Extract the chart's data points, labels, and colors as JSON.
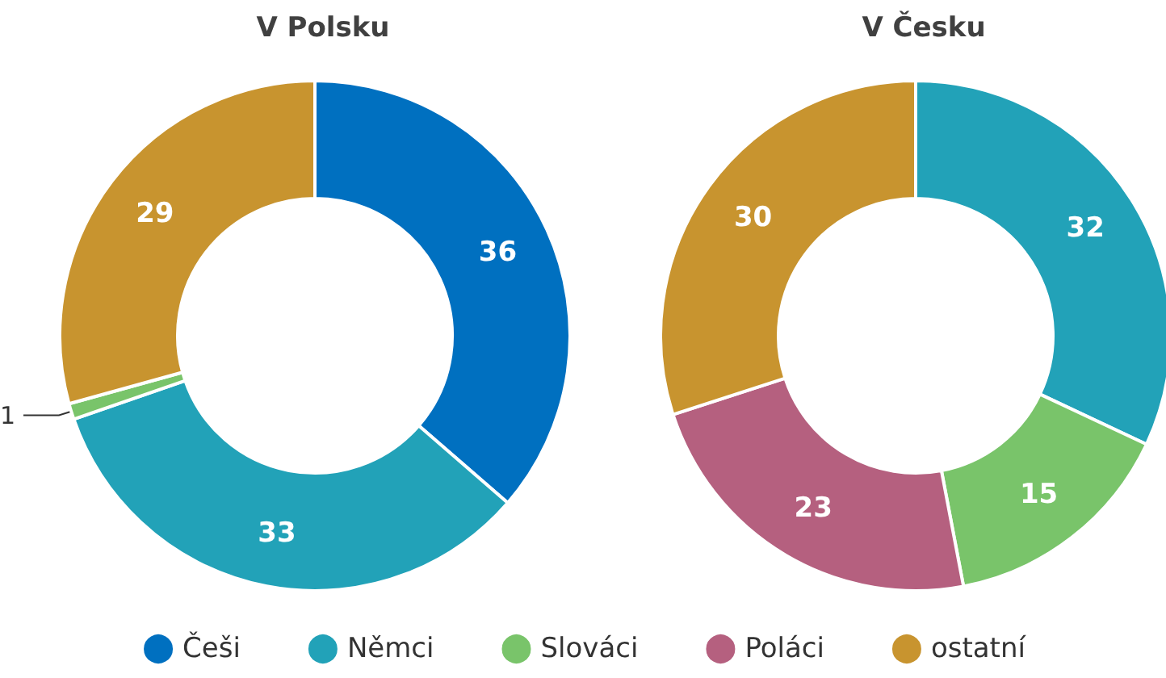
{
  "chart_data": {
    "type": "donut",
    "categories": [
      "Češi",
      "Němci",
      "Slováci",
      "Poláci",
      "ostatní"
    ],
    "colors": [
      "#0070c0",
      "#22a2b8",
      "#79c46a",
      "#b5607f",
      "#c8942f"
    ],
    "data_labels": true,
    "legend": "bottom",
    "series": [
      {
        "name": "V Polsku",
        "values": [
          36,
          33,
          1,
          null,
          29
        ]
      },
      {
        "name": "V Česku",
        "values": [
          null,
          32,
          15,
          23,
          30
        ]
      }
    ]
  }
}
